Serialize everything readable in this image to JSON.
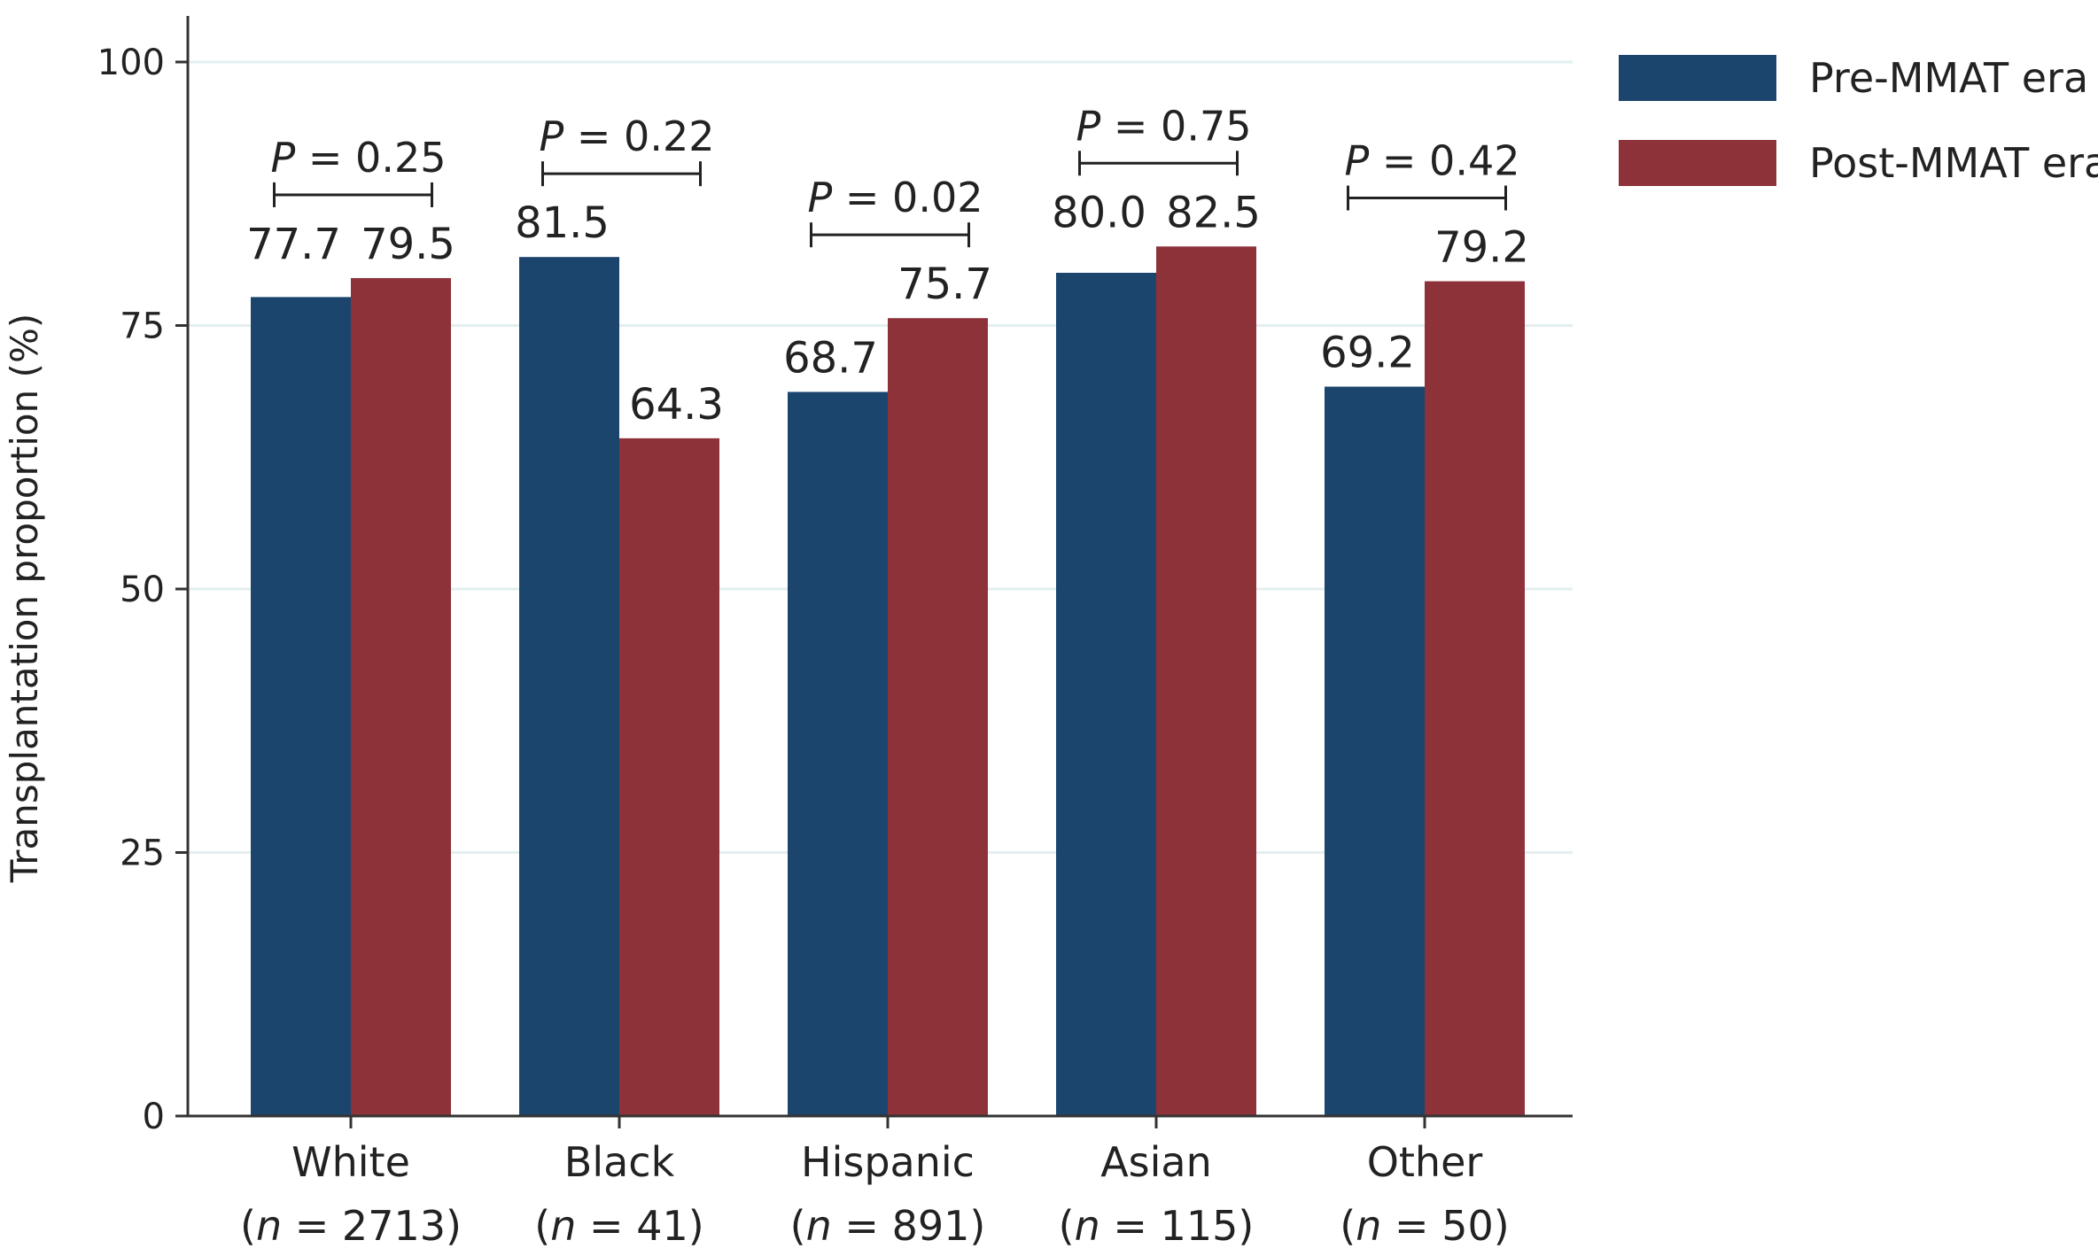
{
  "chart_data": {
    "type": "bar",
    "ylabel": "Transplantation proportion (%)",
    "xlabel": "",
    "ylim": [
      0,
      100
    ],
    "yticks": [
      0,
      25,
      50,
      75,
      100
    ],
    "grid": "horizontal",
    "legend_position": "top-right",
    "categories": [
      {
        "name": "White",
        "n_prefix": "(",
        "n_var": "n",
        "n_text": " = 2713)"
      },
      {
        "name": "Black",
        "n_prefix": "(",
        "n_var": "n",
        "n_text": " = 41)"
      },
      {
        "name": "Hispanic",
        "n_prefix": "(",
        "n_var": "n",
        "n_text": " = 891)"
      },
      {
        "name": "Asian",
        "n_prefix": "(",
        "n_var": "n",
        "n_text": " = 115)"
      },
      {
        "name": "Other",
        "n_prefix": "(",
        "n_var": "n",
        "n_text": " = 50)"
      }
    ],
    "series": [
      {
        "name": "Pre-MMAT era",
        "color": "#1c456e",
        "values": [
          77.7,
          81.5,
          68.7,
          80.0,
          69.2
        ],
        "labels": [
          "77.7",
          "81.5",
          "68.7",
          "80.0",
          "69.2"
        ]
      },
      {
        "name": "Post-MMAT era",
        "color": "#8e323a",
        "values": [
          79.5,
          64.3,
          75.7,
          82.5,
          79.2
        ],
        "labels": [
          "79.5",
          "64.3",
          "75.7",
          "82.5",
          "79.2"
        ]
      }
    ],
    "p_values": [
      {
        "var": "P",
        "text": " = 0.25"
      },
      {
        "var": "P",
        "text": " = 0.22"
      },
      {
        "var": "P",
        "text": " = 0.02"
      },
      {
        "var": "P",
        "text": " = 0.75"
      },
      {
        "var": "P",
        "text": " = 0.42"
      }
    ]
  }
}
